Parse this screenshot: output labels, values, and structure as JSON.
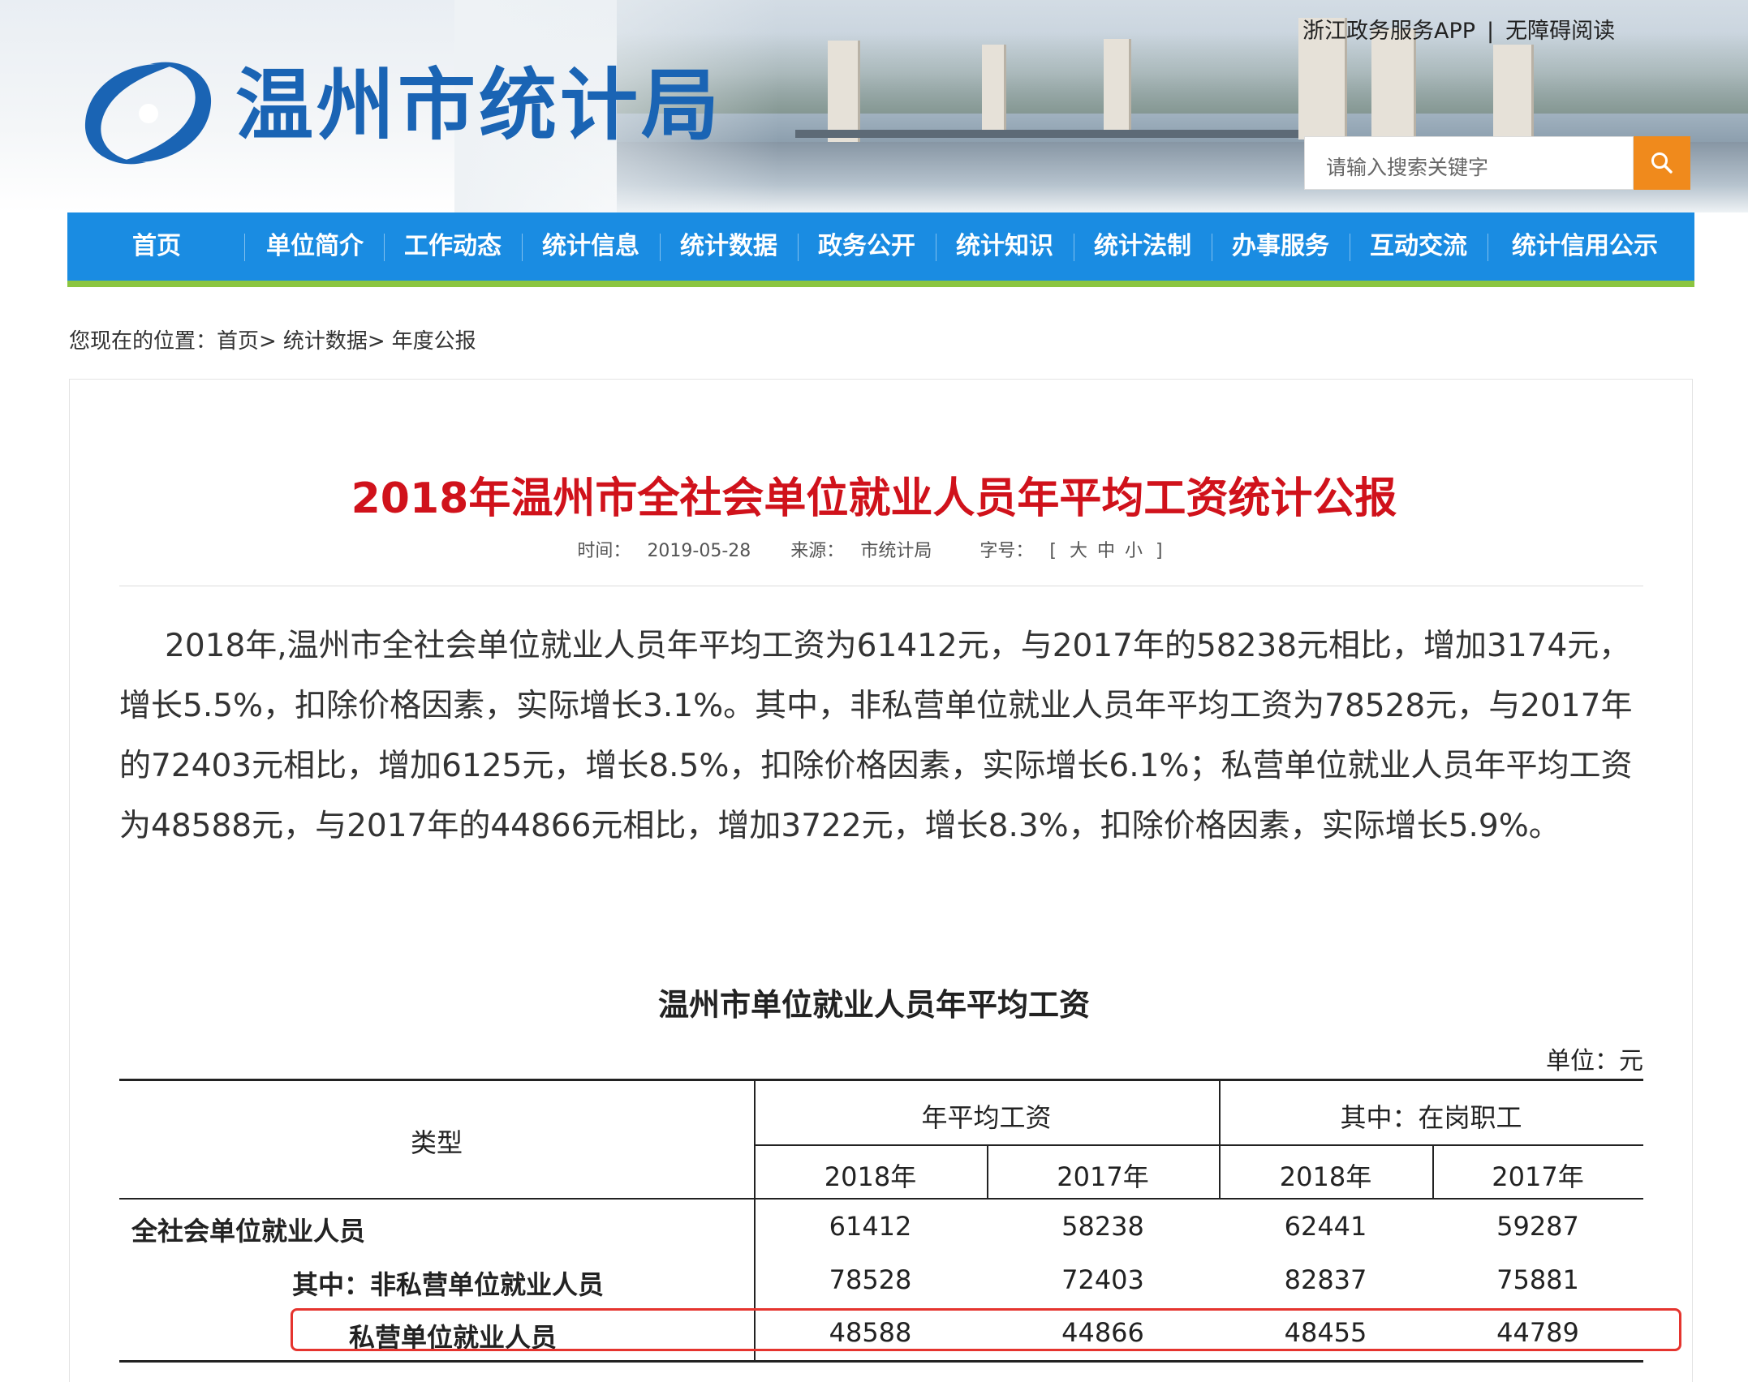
{
  "header": {
    "site_name": "温州市统计局",
    "top_links": [
      "浙江政务服务APP",
      "无障碍阅读"
    ],
    "top_links_sep": "|",
    "search": {
      "placeholder": "请输入搜索关键字"
    }
  },
  "nav": {
    "items": [
      "首页",
      "单位简介",
      "工作动态",
      "统计信息",
      "统计数据",
      "政务公开",
      "统计知识",
      "统计法制",
      "办事服务",
      "互动交流",
      "统计信用公示"
    ]
  },
  "breadcrumb": {
    "prefix": "您现在的位置：",
    "items": [
      "首页>",
      "统计数据>",
      "年度公报"
    ]
  },
  "article": {
    "title": "2018年温州市全社会单位就业人员年平均工资统计公报",
    "meta": {
      "time_label": "时间：",
      "time": "2019-05-28",
      "source_label": "来源：",
      "source": "市统计局",
      "font_label": "字号：",
      "font_open": "[",
      "font_sizes": [
        "大",
        "中",
        "小"
      ],
      "font_close": "]"
    },
    "body": "2018年,温州市全社会单位就业人员年平均工资为61412元，与2017年的58238元相比，增加3174元，增长5.5%，扣除价格因素，实际增长3.1%。其中，非私营单位就业人员年平均工资为78528元，与2017年的72403元相比，增加6125元，增长8.5%，扣除价格因素，实际增长6.1%；私营单位就业人员年平均工资为48588元，与2017年的44866元相比，增加3722元，增长8.3%，扣除价格因素，实际增长5.9%。"
  },
  "table": {
    "title": "温州市单位就业人员年平均工资",
    "unit": "单位：元",
    "header": {
      "type_col": "类型",
      "group1": "年平均工资",
      "group2": "其中：在岗职工",
      "years": [
        "2018年",
        "2017年",
        "2018年",
        "2017年"
      ]
    },
    "rows": [
      {
        "label": "全社会单位就业人员",
        "values": [
          "61412",
          "58238",
          "62441",
          "59287"
        ]
      },
      {
        "label": "其中：非私营单位就业人员",
        "values": [
          "78528",
          "72403",
          "82837",
          "75881"
        ]
      },
      {
        "label": "私营单位就业人员",
        "values": [
          "48588",
          "44866",
          "48455",
          "44789"
        ]
      }
    ]
  },
  "colors": {
    "brand_blue": "#1a64b4",
    "nav_blue": "#1a8ce2",
    "nav_accent_green": "#8bc540",
    "title_red": "#d0121b",
    "search_button": "#f08a1c",
    "highlight_red": "#e5342e"
  },
  "icons": {
    "logo": "swirl-logo-icon",
    "search": "search-icon"
  }
}
